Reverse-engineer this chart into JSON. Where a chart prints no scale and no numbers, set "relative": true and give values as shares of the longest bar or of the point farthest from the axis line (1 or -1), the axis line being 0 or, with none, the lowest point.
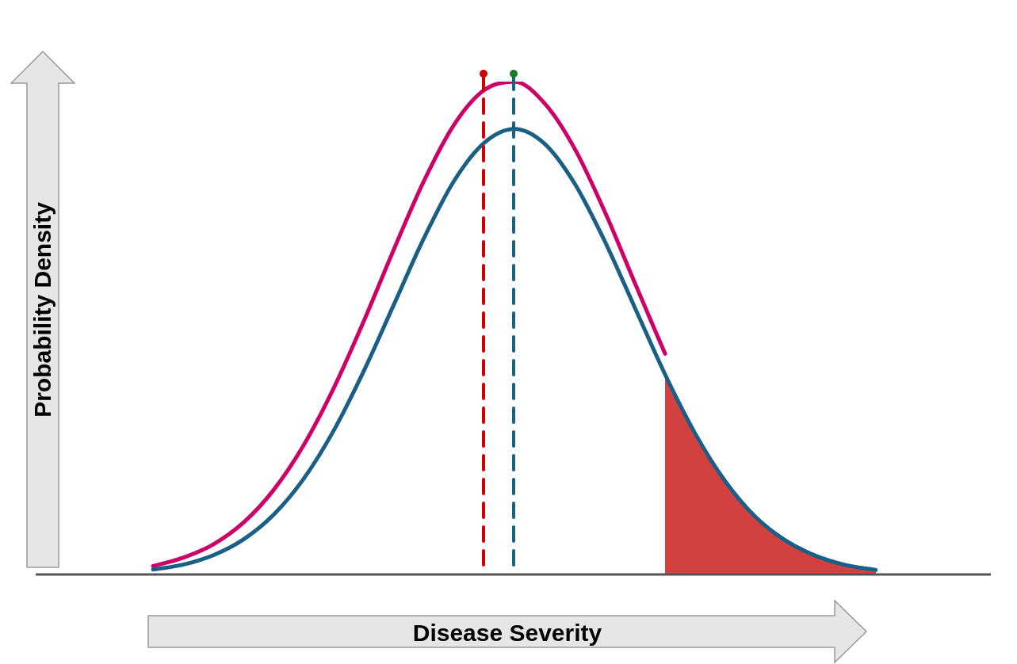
{
  "chart_data": {
    "type": "line",
    "relative": true,
    "xlabel": "Disease Severity",
    "ylabel": "Probability Density",
    "categories": [
      null,
      null,
      null,
      null,
      null,
      null,
      null,
      null,
      null,
      null,
      null,
      null,
      null,
      null,
      null,
      null,
      null,
      null,
      null,
      null,
      null,
      null,
      null,
      null,
      null
    ],
    "series": [
      {
        "type": "area",
        "color": "#d24040",
        "values": [
          null,
          null,
          null,
          null,
          null,
          null,
          null,
          null,
          null,
          null,
          null,
          null,
          null,
          null,
          null,
          null,
          null,
          0.406,
          0.286,
          0.189,
          0.117,
          0.069,
          0.038,
          0.019,
          0.009
        ]
      },
      {
        "color": "#cc0066",
        "values": [
          0.017,
          0.034,
          0.061,
          0.105,
          0.171,
          0.262,
          0.378,
          0.514,
          0.66,
          0.799,
          0.913,
          0.983,
          1,
          0.956,
          0.864,
          0.736,
          0.591,
          0.448,
          null,
          null,
          null,
          null,
          null,
          null,
          null
        ]
      },
      {
        "color": "#1a5f85",
        "values": [
          0.01,
          0.02,
          0.039,
          0.071,
          0.121,
          0.194,
          0.292,
          0.413,
          0.548,
          0.683,
          0.799,
          0.876,
          0.904,
          0.874,
          0.793,
          0.676,
          0.541,
          0.406,
          0.286,
          0.189,
          0.117,
          0.069,
          0.038,
          0.019,
          0.009
        ]
      }
    ],
    "marker": "none",
    "line_style": "solid",
    "tick_labels": false
  }
}
